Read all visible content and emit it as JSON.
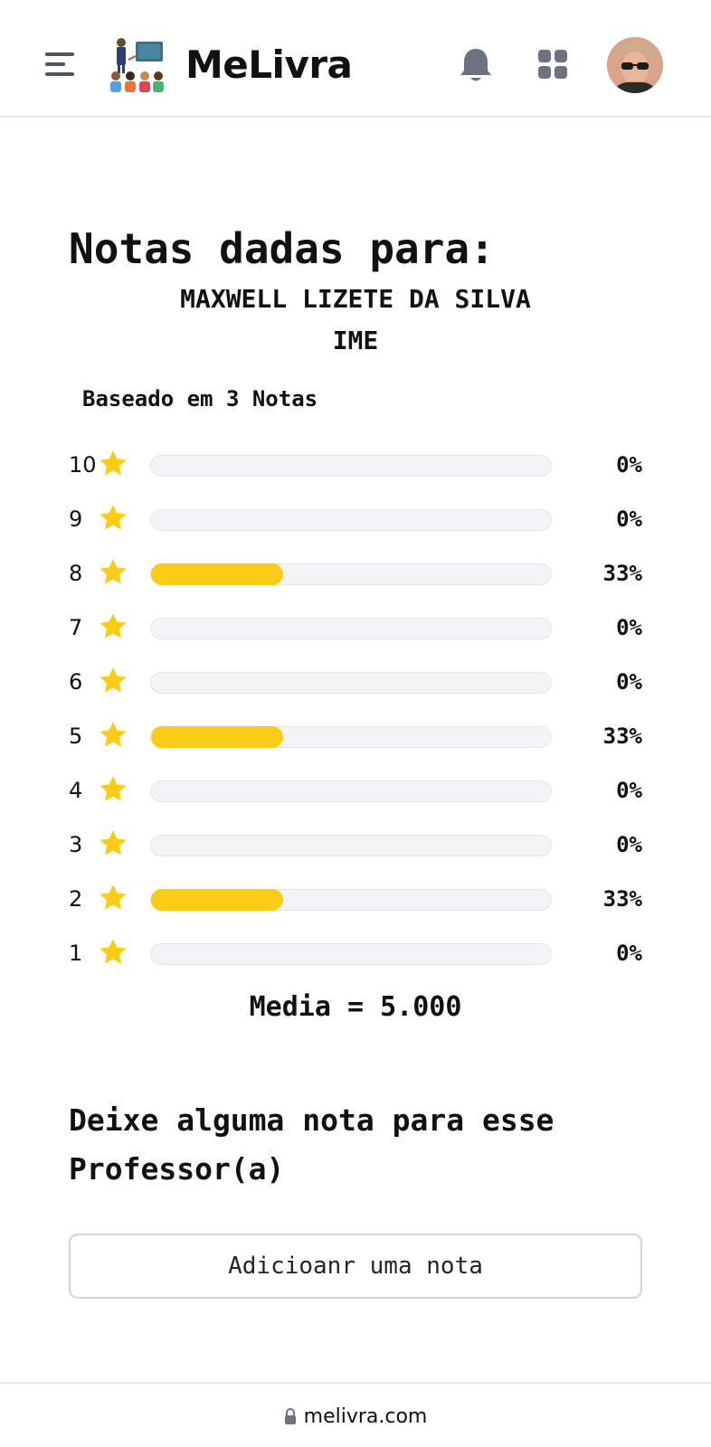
{
  "header": {
    "menu_icon": "hamburger-menu-icon",
    "logo_icon": "teacher-classroom-icon",
    "brand": "MeLivra",
    "notification_icon": "bell-icon",
    "apps_icon": "apps-grid-icon",
    "avatar": "user-avatar"
  },
  "main": {
    "title": "Notas dadas para:",
    "professor_name": "MAXWELL LIZETE DA SILVA",
    "institution": "IME",
    "based_on": "Baseado em 3 Notas",
    "ratings": [
      {
        "score": "10",
        "percent_label": "0%",
        "fraction": 0
      },
      {
        "score": "9",
        "percent_label": "0%",
        "fraction": 0
      },
      {
        "score": "8",
        "percent_label": "33%",
        "fraction": 0.33
      },
      {
        "score": "7",
        "percent_label": "0%",
        "fraction": 0
      },
      {
        "score": "6",
        "percent_label": "0%",
        "fraction": 0
      },
      {
        "score": "5",
        "percent_label": "33%",
        "fraction": 0.33
      },
      {
        "score": "4",
        "percent_label": "0%",
        "fraction": 0
      },
      {
        "score": "3",
        "percent_label": "0%",
        "fraction": 0
      },
      {
        "score": "2",
        "percent_label": "33%",
        "fraction": 0.33
      },
      {
        "score": "1",
        "percent_label": "0%",
        "fraction": 0
      }
    ],
    "average": "Media = 5.000",
    "prompt_line1": "Deixe alguma nota para esse",
    "prompt_line2": "Professor(a)",
    "add_button": "Adicioanr uma nota"
  },
  "browser": {
    "lock_icon": "lock-icon",
    "url": "melivra.com"
  },
  "colors": {
    "star": "#facc15",
    "bar_fill": "#facc15",
    "bar_track": "#f3f4f6",
    "icon_gray": "#4b5563"
  }
}
